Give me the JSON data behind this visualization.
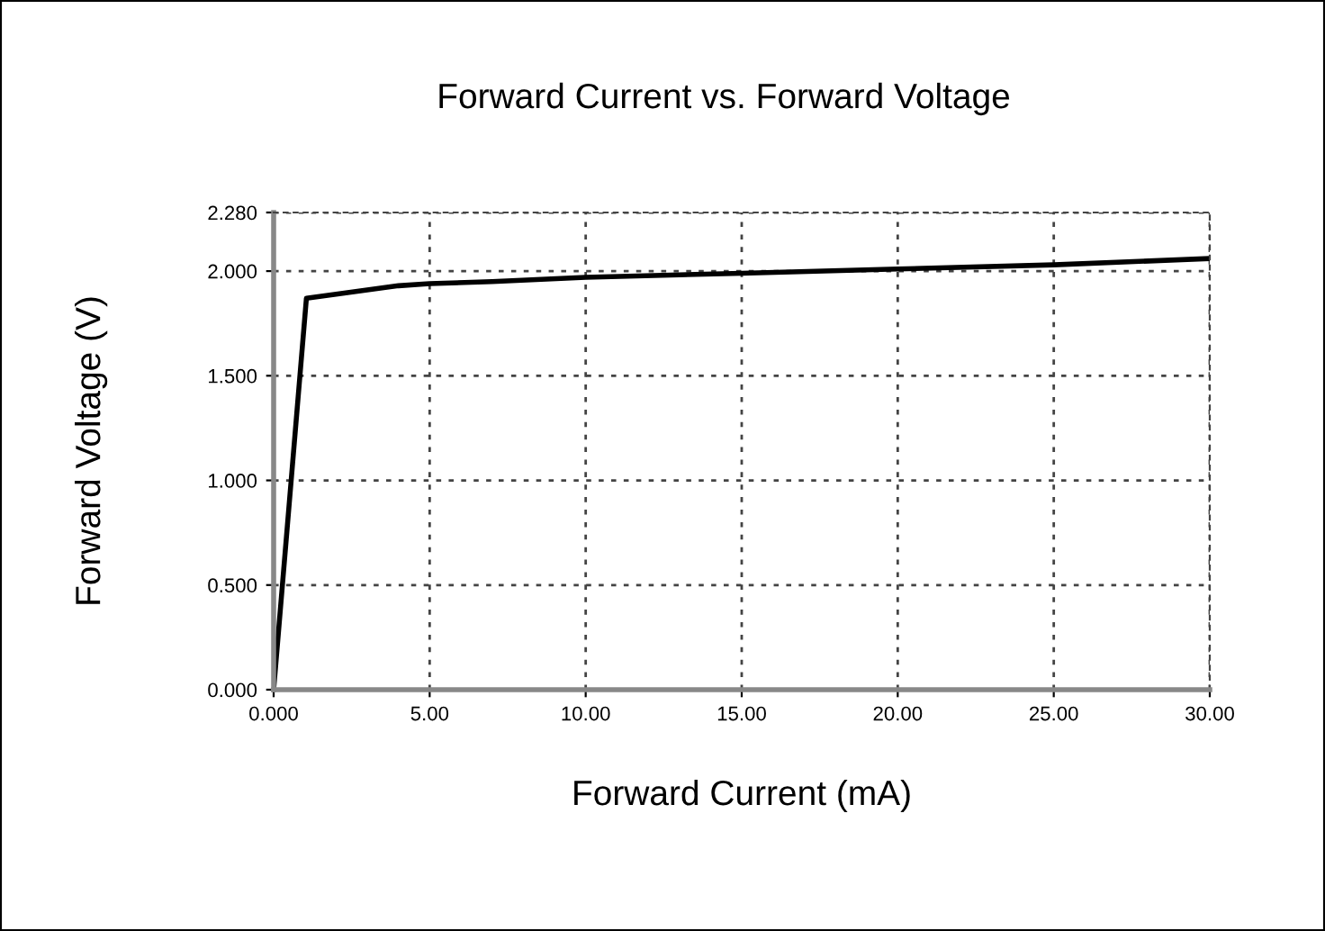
{
  "chart_data": {
    "type": "line",
    "title": "Forward Current vs. Forward Voltage",
    "xlabel": "Forward Current (mA)",
    "ylabel": "Forward Voltage (V)",
    "x": [
      0,
      1.05,
      2,
      4,
      5,
      7,
      10,
      15,
      20,
      25,
      30
    ],
    "series": [
      {
        "color": "#000000",
        "values": [
          0,
          1.87,
          1.89,
          1.93,
          1.94,
          1.95,
          1.97,
          1.99,
          2.01,
          2.03,
          2.06
        ]
      }
    ],
    "xlim": [
      0,
      30
    ],
    "ylim": [
      0,
      2.28
    ],
    "xticks": [
      {
        "value": 0,
        "label": "0.000"
      },
      {
        "value": 5,
        "label": "5.00"
      },
      {
        "value": 10,
        "label": "10.00"
      },
      {
        "value": 15,
        "label": "15.00"
      },
      {
        "value": 20,
        "label": "20.00"
      },
      {
        "value": 25,
        "label": "25.00"
      },
      {
        "value": 30,
        "label": "30.00"
      }
    ],
    "yticks": [
      {
        "value": 0,
        "label": "0.000"
      },
      {
        "value": 0.5,
        "label": "0.500"
      },
      {
        "value": 1,
        "label": "1.000"
      },
      {
        "value": 1.5,
        "label": "1.500"
      },
      {
        "value": 2,
        "label": "2.000"
      },
      {
        "value": 2.28,
        "label": "2.280"
      }
    ],
    "grid": true,
    "marker": "none",
    "line_style": "solid",
    "legend": false
  }
}
